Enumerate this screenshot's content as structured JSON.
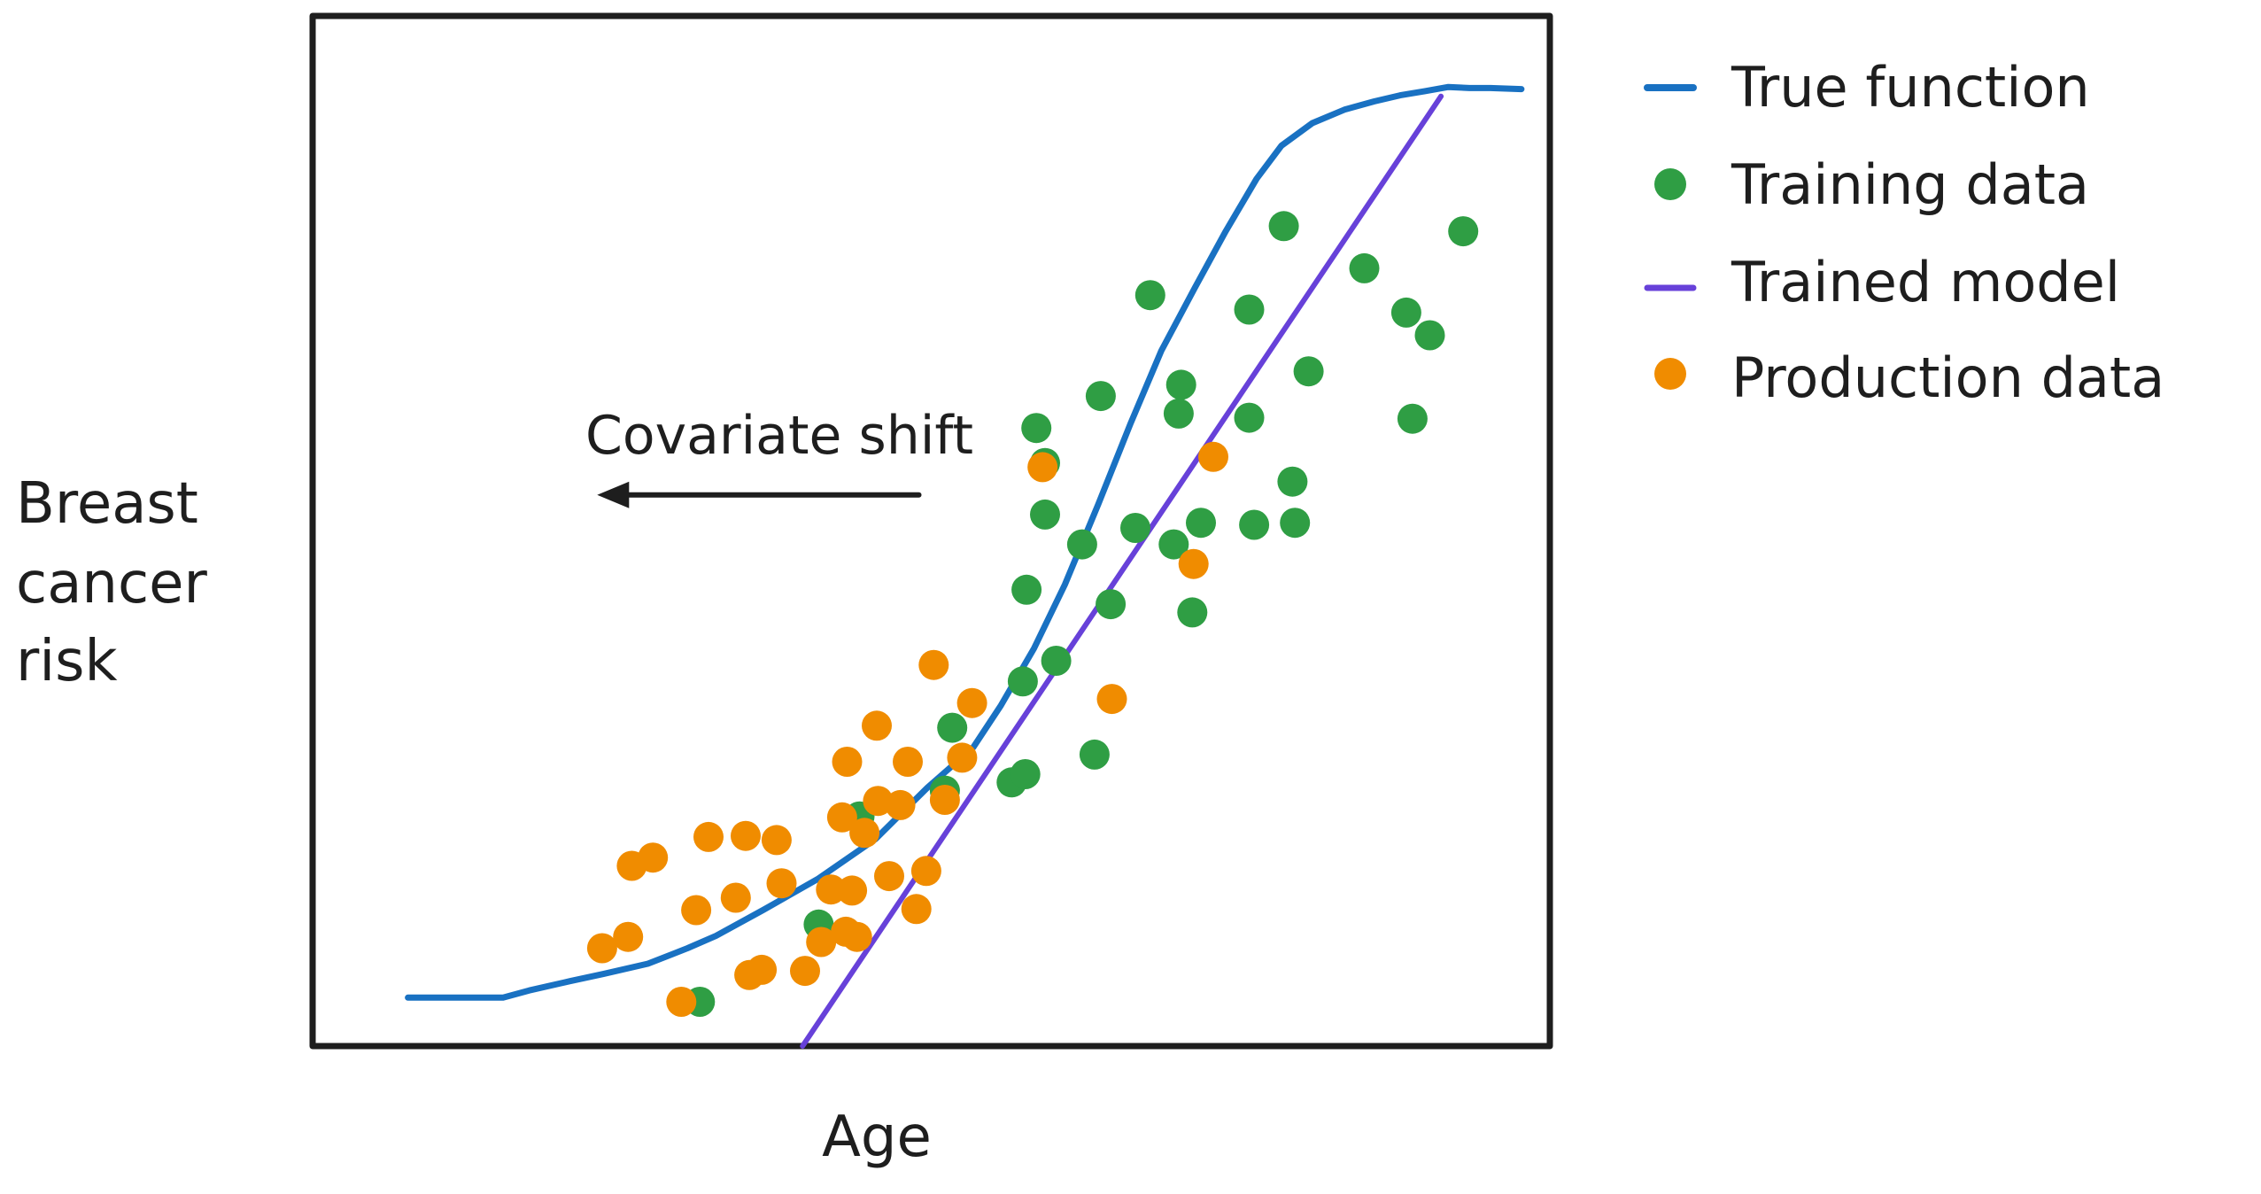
{
  "chart_data": {
    "type": "scatter",
    "title": "",
    "xlabel": "Age",
    "ylabel_lines": [
      "Breast",
      "cancer",
      "risk"
    ],
    "xlim": [
      0,
      100
    ],
    "ylim": [
      0,
      100
    ],
    "grid": false,
    "legend_position": "right",
    "annotation": {
      "text": "Covariate shift",
      "arrow_from": [
        49,
        53.5
      ],
      "arrow_to": [
        23,
        53.5
      ]
    },
    "series": [
      {
        "name": "True function",
        "kind": "line",
        "color": "#1971c2",
        "x": [
          7.7,
          15.4,
          17.5,
          20.8,
          23.5,
          27.1,
          30.3,
          32.6,
          36.4,
          40.8,
          45.5,
          49.7,
          53.4,
          55.6,
          58.3,
          60.8,
          63.5,
          66.1,
          68.6,
          71.3,
          73.8,
          76.3,
          78.3,
          80.8,
          83.4,
          85.8,
          87.9,
          89.9,
          91.8,
          93.5,
          95.2,
          97.7
        ],
        "values": [
          4.7,
          4.7,
          5.4,
          6.3,
          7.0,
          8.0,
          9.5,
          10.7,
          13.2,
          16.2,
          20.1,
          25.1,
          29.0,
          33.0,
          38.6,
          44.8,
          52.6,
          60.4,
          67.5,
          73.6,
          79.1,
          84.2,
          87.4,
          89.6,
          90.9,
          91.7,
          92.3,
          92.7,
          93.1,
          93.0,
          93.0,
          92.9
        ]
      },
      {
        "name": "Trained model",
        "kind": "line",
        "color": "#6741d9",
        "x": [
          39.6,
          91.2
        ],
        "values": [
          0,
          92.2
        ]
      },
      {
        "name": "Training data",
        "kind": "scatter",
        "color": "#2f9e44",
        "points": [
          [
            31.3,
            4.3
          ],
          [
            40.9,
            11.8
          ],
          [
            44.2,
            22.3
          ],
          [
            51.1,
            24.8
          ],
          [
            56.5,
            25.6
          ],
          [
            51.7,
            30.9
          ],
          [
            57.6,
            26.4
          ],
          [
            63.2,
            28.3
          ],
          [
            57.4,
            35.4
          ],
          [
            60.1,
            37.4
          ],
          [
            64.5,
            42.9
          ],
          [
            62.2,
            48.7
          ],
          [
            71.1,
            42.1
          ],
          [
            69.6,
            48.7
          ],
          [
            57.7,
            44.3
          ],
          [
            59.2,
            51.6
          ],
          [
            66.5,
            50.3
          ],
          [
            71.8,
            50.8
          ],
          [
            76.1,
            50.6
          ],
          [
            79.4,
            50.8
          ],
          [
            79.2,
            54.8
          ],
          [
            63.7,
            63.1
          ],
          [
            58.5,
            60.0
          ],
          [
            59.2,
            56.6
          ],
          [
            70.0,
            61.4
          ],
          [
            75.7,
            61.0
          ],
          [
            75.7,
            71.5
          ],
          [
            80.5,
            65.5
          ],
          [
            70.2,
            64.2
          ],
          [
            88.4,
            71.2
          ],
          [
            85.0,
            75.5
          ],
          [
            93.0,
            79.1
          ],
          [
            90.3,
            69.0
          ],
          [
            88.9,
            60.9
          ],
          [
            67.7,
            72.9
          ],
          [
            78.5,
            79.6
          ]
        ]
      },
      {
        "name": "Production data",
        "kind": "scatter",
        "color": "#f08c00",
        "points": [
          [
            23.4,
            9.5
          ],
          [
            25.5,
            10.6
          ],
          [
            25.8,
            17.5
          ],
          [
            27.5,
            18.3
          ],
          [
            31.0,
            13.2
          ],
          [
            32.0,
            20.3
          ],
          [
            34.2,
            14.4
          ],
          [
            35.0,
            20.4
          ],
          [
            29.8,
            4.3
          ],
          [
            35.3,
            6.9
          ],
          [
            36.3,
            7.4
          ],
          [
            37.9,
            15.8
          ],
          [
            37.5,
            20.0
          ],
          [
            39.8,
            7.3
          ],
          [
            41.1,
            10.1
          ],
          [
            43.6,
            15.1
          ],
          [
            43.1,
            11.1
          ],
          [
            42.8,
            22.2
          ],
          [
            41.9,
            15.2
          ],
          [
            45.7,
            23.8
          ],
          [
            44.6,
            20.7
          ],
          [
            44.0,
            10.6
          ],
          [
            46.6,
            16.5
          ],
          [
            47.5,
            23.4
          ],
          [
            48.8,
            13.3
          ],
          [
            49.6,
            17.0
          ],
          [
            51.1,
            23.9
          ],
          [
            50.2,
            37.0
          ],
          [
            53.3,
            33.3
          ],
          [
            52.5,
            28.0
          ],
          [
            45.6,
            31.1
          ],
          [
            43.2,
            27.6
          ],
          [
            48.1,
            27.6
          ],
          [
            59.0,
            56.2
          ],
          [
            64.6,
            33.7
          ],
          [
            71.2,
            46.8
          ],
          [
            72.8,
            57.2
          ]
        ]
      }
    ]
  }
}
